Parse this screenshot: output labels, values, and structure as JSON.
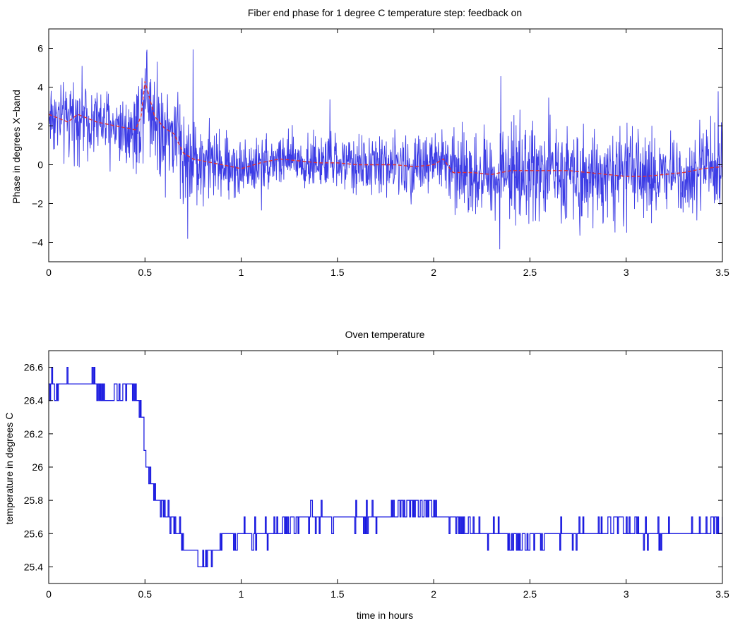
{
  "chart_data": [
    {
      "type": "line",
      "title": "Fiber end phase for 1 degree C temperature step: feedback on",
      "xlabel": "",
      "ylabel": "Phase in degrees X−band",
      "xlim": [
        0,
        3.5
      ],
      "ylim": [
        -5,
        7
      ],
      "xticks": [
        "0",
        "0.5",
        "1",
        "1.5",
        "2",
        "2.5",
        "3",
        "3.5"
      ],
      "xtick_values": [
        0,
        0.5,
        1,
        1.5,
        2,
        2.5,
        3,
        3.5
      ],
      "yticks": [
        "−4",
        "−2",
        "0",
        "2",
        "4",
        "6"
      ],
      "ytick_values": [
        -4,
        -2,
        0,
        2,
        4,
        6
      ],
      "grid": false,
      "series": [
        {
          "color": "#1a1ae0",
          "style": "noisy raw phase",
          "x": [
            0,
            0.05,
            0.1,
            0.15,
            0.2,
            0.25,
            0.3,
            0.35,
            0.4,
            0.45,
            0.48,
            0.5,
            0.52,
            0.55,
            0.6,
            0.65,
            0.7,
            0.75,
            0.8,
            0.9,
            1.0,
            1.1,
            1.2,
            1.3,
            1.4,
            1.5,
            1.6,
            1.7,
            1.8,
            1.9,
            2.0,
            2.05,
            2.1,
            2.2,
            2.3,
            2.4,
            2.5,
            2.6,
            2.7,
            2.8,
            2.9,
            3.0,
            3.1,
            3.2,
            3.3,
            3.4,
            3.5
          ],
          "y": [
            2.6,
            2.4,
            2.2,
            2.6,
            2.4,
            2.2,
            2.1,
            2.0,
            1.9,
            1.8,
            2.5,
            4.3,
            3.6,
            2.5,
            1.9,
            1.6,
            0.6,
            0.3,
            0.2,
            0.0,
            -0.2,
            0.1,
            0.3,
            0.2,
            0.1,
            0.1,
            0.0,
            0.0,
            0.0,
            -0.1,
            0.0,
            0.3,
            -0.4,
            -0.4,
            -0.5,
            -0.3,
            -0.3,
            -0.3,
            -0.3,
            -0.4,
            -0.5,
            -0.6,
            -0.6,
            -0.5,
            -0.4,
            -0.2,
            -0.1
          ],
          "noise_amplitude": [
            1.4,
            1.3,
            1.3,
            1.4,
            1.3,
            1.3,
            1.3,
            1.3,
            1.3,
            1.5,
            2.0,
            2.0,
            1.9,
            1.9,
            2.0,
            2.0,
            2.0,
            1.8,
            1.5,
            1.2,
            1.1,
            1.0,
            1.0,
            1.0,
            1.0,
            1.0,
            1.0,
            1.1,
            1.1,
            1.2,
            1.3,
            1.3,
            1.4,
            1.5,
            1.6,
            1.6,
            1.7,
            1.7,
            1.7,
            1.7,
            1.6,
            1.6,
            1.5,
            1.5,
            1.5,
            1.5,
            1.6
          ]
        },
        {
          "color": "#e03030",
          "style": "dashed filtered phase",
          "x": [
            0,
            0.05,
            0.1,
            0.15,
            0.2,
            0.25,
            0.3,
            0.35,
            0.4,
            0.45,
            0.48,
            0.5,
            0.52,
            0.55,
            0.6,
            0.65,
            0.7,
            0.75,
            0.8,
            0.9,
            1.0,
            1.1,
            1.2,
            1.3,
            1.4,
            1.5,
            1.6,
            1.7,
            1.8,
            1.9,
            2.0,
            2.05,
            2.1,
            2.2,
            2.3,
            2.4,
            2.5,
            2.6,
            2.7,
            2.8,
            2.9,
            3.0,
            3.1,
            3.2,
            3.3,
            3.4,
            3.5
          ],
          "y": [
            2.6,
            2.4,
            2.2,
            2.6,
            2.4,
            2.2,
            2.1,
            2.0,
            1.9,
            1.8,
            2.5,
            4.3,
            3.6,
            2.5,
            1.9,
            1.6,
            0.6,
            0.3,
            0.2,
            0.0,
            -0.2,
            0.1,
            0.3,
            0.2,
            0.1,
            0.1,
            0.0,
            0.0,
            0.0,
            -0.1,
            0.0,
            0.3,
            -0.4,
            -0.4,
            -0.5,
            -0.3,
            -0.3,
            -0.3,
            -0.3,
            -0.4,
            -0.5,
            -0.6,
            -0.6,
            -0.5,
            -0.4,
            -0.2,
            -0.1
          ]
        }
      ]
    },
    {
      "type": "line",
      "title": "Oven temperature",
      "xlabel": "time in hours",
      "ylabel": "temperature in degrees C",
      "xlim": [
        0,
        3.5
      ],
      "ylim": [
        25.3,
        26.7
      ],
      "xticks": [
        "0",
        "0.5",
        "1",
        "1.5",
        "2",
        "2.5",
        "3",
        "3.5"
      ],
      "xtick_values": [
        0,
        0.5,
        1,
        1.5,
        2,
        2.5,
        3,
        3.5
      ],
      "yticks": [
        "25.4",
        "25.6",
        "25.8",
        "26",
        "26.2",
        "26.4",
        "26.6"
      ],
      "ytick_values": [
        25.4,
        25.6,
        25.8,
        26.0,
        26.2,
        26.4,
        26.6
      ],
      "grid": false,
      "series": [
        {
          "color": "#1a1ae0",
          "style": "quantized step trace",
          "x": [
            0,
            0.07,
            0.24,
            0.3,
            0.44,
            0.48,
            0.5,
            0.52,
            0.55,
            0.58,
            0.62,
            0.65,
            0.68,
            0.72,
            0.76,
            0.8,
            0.82,
            0.85,
            0.9,
            1.0,
            1.1,
            1.2,
            1.25,
            1.35,
            1.45,
            1.6,
            1.75,
            1.85,
            1.95,
            2.05,
            2.15,
            2.25,
            2.35,
            2.45,
            2.6,
            2.8,
            2.95,
            3.1,
            3.3,
            3.5
          ],
          "y": [
            26.5,
            26.5,
            26.5,
            26.4,
            26.5,
            26.3,
            26.1,
            25.95,
            25.85,
            25.75,
            25.7,
            25.6,
            25.6,
            25.5,
            25.5,
            25.4,
            25.4,
            25.5,
            25.55,
            25.6,
            25.6,
            25.6,
            25.65,
            25.7,
            25.7,
            25.7,
            25.7,
            25.75,
            25.75,
            25.7,
            25.65,
            25.6,
            25.6,
            25.55,
            25.6,
            25.6,
            25.65,
            25.6,
            25.6,
            25.65
          ],
          "quantization": 0.1
        }
      ]
    }
  ]
}
